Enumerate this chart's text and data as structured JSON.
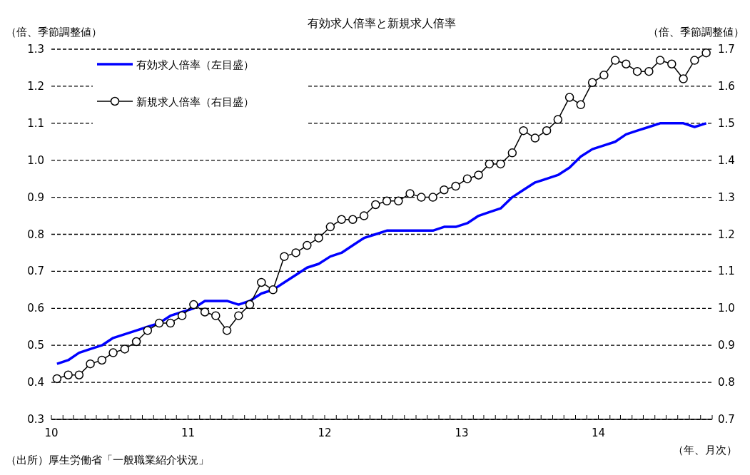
{
  "chart_data": {
    "type": "line",
    "title": "有効求人倍率と新規求人倍率",
    "ylabel": "（倍、季節調整値）",
    "y2label": "（倍、季節調整値）",
    "xlabel": "（年、月次）",
    "annotations": [
      "（出所）厚生労働省「一般職業紹介状況」"
    ],
    "x": [
      "2010-01-16",
      "2010-02-15",
      "2010-03-16",
      "2010-04-15",
      "2010-05-16",
      "2010-06-15",
      "2010-07-16",
      "2010-08-16",
      "2010-09-15",
      "2010-10-16",
      "2010-11-15",
      "2010-12-16",
      "2011-01-16",
      "2011-02-15",
      "2011-03-16",
      "2011-04-15",
      "2011-05-16",
      "2011-06-15",
      "2011-07-16",
      "2011-08-16",
      "2011-09-15",
      "2011-10-16",
      "2011-11-15",
      "2011-12-16",
      "2012-01-16",
      "2012-02-15",
      "2012-03-16",
      "2012-04-15",
      "2012-05-16",
      "2012-06-15",
      "2012-07-16",
      "2012-08-16",
      "2012-09-15",
      "2012-10-16",
      "2012-11-15",
      "2012-12-16",
      "2013-01-16",
      "2013-02-15",
      "2013-03-16",
      "2013-04-15",
      "2013-05-16",
      "2013-06-15",
      "2013-07-16",
      "2013-08-16",
      "2013-09-15",
      "2013-10-16",
      "2013-11-15",
      "2013-12-16",
      "2014-01-16",
      "2014-02-15",
      "2014-03-16",
      "2014-04-15",
      "2014-05-16",
      "2014-06-15",
      "2014-07-16",
      "2014-08-16",
      "2014-09-15",
      "2014-10-16"
    ],
    "series": [
      {
        "name": "有効求人倍率（左目盛）",
        "color": "#0000ff",
        "marker": "none",
        "values": [
          0.45,
          0.46,
          0.48,
          0.49,
          0.5,
          0.52,
          0.53,
          0.54,
          0.55,
          0.56,
          0.58,
          0.59,
          0.6,
          0.62,
          0.62,
          0.62,
          0.61,
          0.62,
          0.64,
          0.65,
          0.67,
          0.69,
          0.71,
          0.72,
          0.74,
          0.75,
          0.77,
          0.79,
          0.8,
          0.81,
          0.81,
          0.81,
          0.81,
          0.81,
          0.82,
          0.82,
          0.83,
          0.85,
          0.86,
          0.87,
          0.9,
          0.92,
          0.94,
          0.95,
          0.96,
          0.98,
          1.01,
          1.03,
          1.04,
          1.05,
          1.07,
          1.08,
          1.09,
          1.1,
          1.1,
          1.1,
          1.09,
          1.1
        ]
      },
      {
        "name": "新規求人倍率（右目盛）",
        "color": "#000000",
        "marker": "circle",
        "axis": "y2",
        "values": [
          0.81,
          0.82,
          0.82,
          0.85,
          0.86,
          0.88,
          0.89,
          0.91,
          0.94,
          0.96,
          0.96,
          0.98,
          1.01,
          0.99,
          0.98,
          0.94,
          0.98,
          1.01,
          1.07,
          1.05,
          1.14,
          1.15,
          1.17,
          1.19,
          1.22,
          1.24,
          1.24,
          1.25,
          1.28,
          1.29,
          1.29,
          1.31,
          1.3,
          1.3,
          1.32,
          1.33,
          1.35,
          1.36,
          1.39,
          1.39,
          1.42,
          1.48,
          1.46,
          1.48,
          1.51,
          1.57,
          1.55,
          1.61,
          1.63,
          1.67,
          1.66,
          1.64,
          1.64,
          1.67,
          1.66,
          1.62,
          1.67,
          1.69
        ]
      }
    ],
    "ylim": [
      0.3,
      1.3
    ],
    "yticks": [
      {
        "value": 0.3,
        "label": "0.3"
      },
      {
        "value": 0.4,
        "label": "0.4"
      },
      {
        "value": 0.5,
        "label": "0.5"
      },
      {
        "value": 0.6,
        "label": "0.6"
      },
      {
        "value": 0.7,
        "label": "0.7"
      },
      {
        "value": 0.8,
        "label": "0.8"
      },
      {
        "value": 0.9,
        "label": "0.9"
      },
      {
        "value": 1.0,
        "label": "1.0"
      },
      {
        "value": 1.1,
        "label": "1.1"
      },
      {
        "value": 1.2,
        "label": "1.2"
      },
      {
        "value": 1.3,
        "label": "1.3"
      }
    ],
    "y2lim": [
      0.7,
      1.7
    ],
    "y2ticks": [
      {
        "value": 0.7,
        "label": "0.7"
      },
      {
        "value": 0.8,
        "label": "0.8"
      },
      {
        "value": 0.9,
        "label": "0.9"
      },
      {
        "value": 1.0,
        "label": "1.0"
      },
      {
        "value": 1.1,
        "label": "1.1"
      },
      {
        "value": 1.2,
        "label": "1.2"
      },
      {
        "value": 1.3,
        "label": "1.3"
      },
      {
        "value": 1.4,
        "label": "1.4"
      },
      {
        "value": 1.5,
        "label": "1.5"
      },
      {
        "value": 1.6,
        "label": "1.6"
      },
      {
        "value": 1.7,
        "label": "1.7"
      }
    ],
    "xlim": [
      "2010-01-01",
      "2014-11-01"
    ],
    "xticks": [
      {
        "value": "2010-01-01",
        "label": "10"
      },
      {
        "value": "2010-02-01",
        "label": null
      },
      {
        "value": "2010-03-01",
        "label": null
      },
      {
        "value": "2010-04-01",
        "label": null
      },
      {
        "value": "2010-05-01",
        "label": null
      },
      {
        "value": "2010-06-01",
        "label": null
      },
      {
        "value": "2010-07-01",
        "label": null
      },
      {
        "value": "2010-08-01",
        "label": null
      },
      {
        "value": "2010-09-01",
        "label": null
      },
      {
        "value": "2010-10-01",
        "label": null
      },
      {
        "value": "2010-11-01",
        "label": null
      },
      {
        "value": "2010-12-01",
        "label": null
      },
      {
        "value": "2011-01-01",
        "label": "11"
      },
      {
        "value": "2011-02-01",
        "label": null
      },
      {
        "value": "2011-03-01",
        "label": null
      },
      {
        "value": "2011-04-01",
        "label": null
      },
      {
        "value": "2011-05-01",
        "label": null
      },
      {
        "value": "2011-06-01",
        "label": null
      },
      {
        "value": "2011-07-01",
        "label": null
      },
      {
        "value": "2011-08-01",
        "label": null
      },
      {
        "value": "2011-09-01",
        "label": null
      },
      {
        "value": "2011-10-01",
        "label": null
      },
      {
        "value": "2011-11-01",
        "label": null
      },
      {
        "value": "2011-12-01",
        "label": null
      },
      {
        "value": "2012-01-01",
        "label": "12"
      },
      {
        "value": "2012-02-01",
        "label": null
      },
      {
        "value": "2012-03-01",
        "label": null
      },
      {
        "value": "2012-04-01",
        "label": null
      },
      {
        "value": "2012-05-01",
        "label": null
      },
      {
        "value": "2012-06-01",
        "label": null
      },
      {
        "value": "2012-07-01",
        "label": null
      },
      {
        "value": "2012-08-01",
        "label": null
      },
      {
        "value": "2012-09-01",
        "label": null
      },
      {
        "value": "2012-10-01",
        "label": null
      },
      {
        "value": "2012-11-01",
        "label": null
      },
      {
        "value": "2012-12-01",
        "label": null
      },
      {
        "value": "2013-01-01",
        "label": "13"
      },
      {
        "value": "2013-02-01",
        "label": null
      },
      {
        "value": "2013-03-01",
        "label": null
      },
      {
        "value": "2013-04-01",
        "label": null
      },
      {
        "value": "2013-05-01",
        "label": null
      },
      {
        "value": "2013-06-01",
        "label": null
      },
      {
        "value": "2013-07-01",
        "label": null
      },
      {
        "value": "2013-08-01",
        "label": null
      },
      {
        "value": "2013-09-01",
        "label": null
      },
      {
        "value": "2013-10-01",
        "label": null
      },
      {
        "value": "2013-11-01",
        "label": null
      },
      {
        "value": "2013-12-01",
        "label": null
      },
      {
        "value": "2014-01-01",
        "label": "14"
      },
      {
        "value": "2014-02-01",
        "label": null
      },
      {
        "value": "2014-03-01",
        "label": null
      },
      {
        "value": "2014-04-01",
        "label": null
      },
      {
        "value": "2014-05-01",
        "label": null
      },
      {
        "value": "2014-06-01",
        "label": null
      },
      {
        "value": "2014-07-01",
        "label": null
      },
      {
        "value": "2014-08-01",
        "label": null
      },
      {
        "value": "2014-09-01",
        "label": null
      },
      {
        "value": "2014-10-01",
        "label": null
      },
      {
        "value": "2014-11-01",
        "label": null
      }
    ],
    "grid": "y",
    "legend": "top left",
    "line_style": "solid"
  }
}
